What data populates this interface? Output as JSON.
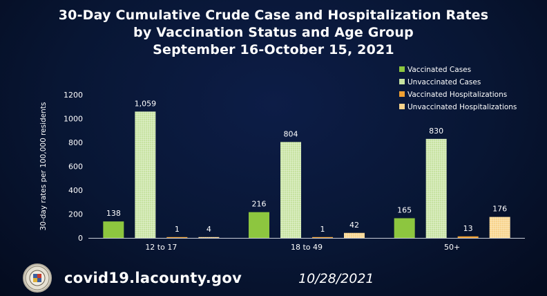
{
  "title_lines": [
    "30-Day Cumulative Crude Case and Hospitalization Rates",
    "by Vaccination Status and Age Group",
    "September 16-October 15, 2021"
  ],
  "chart_data": {
    "type": "bar",
    "categories": [
      "12 to 17",
      "18 to 49",
      "50+"
    ],
    "series": [
      {
        "name": "Vaccinated Cases",
        "color": "#8dc63f",
        "pattern": "solid",
        "values": [
          138,
          216,
          165
        ]
      },
      {
        "name": "Unvaccinated Cases",
        "color": "#c6e2a0",
        "pattern": "grid",
        "values": [
          1059,
          804,
          830
        ]
      },
      {
        "name": "Vaccinated Hospitalizations",
        "color": "#f0a032",
        "pattern": "solid",
        "values": [
          1,
          1,
          13
        ]
      },
      {
        "name": "Unvaccinated Hospitalizations",
        "color": "#f7d38c",
        "pattern": "grid",
        "values": [
          4,
          42,
          176
        ]
      }
    ],
    "data_labels": [
      [
        "138",
        "1,059",
        "1",
        "4"
      ],
      [
        "216",
        "804",
        "1",
        "42"
      ],
      [
        "165",
        "830",
        "13",
        "176"
      ]
    ],
    "ylabel": "30-day rates per 100,000 residents",
    "yticks": [
      0,
      200,
      400,
      600,
      800,
      1000,
      1200
    ],
    "ylim": [
      0,
      1200
    ],
    "legend_position": "top-right"
  },
  "footer": {
    "url": "covid19.lacounty.gov",
    "date": "10/28/2021"
  }
}
